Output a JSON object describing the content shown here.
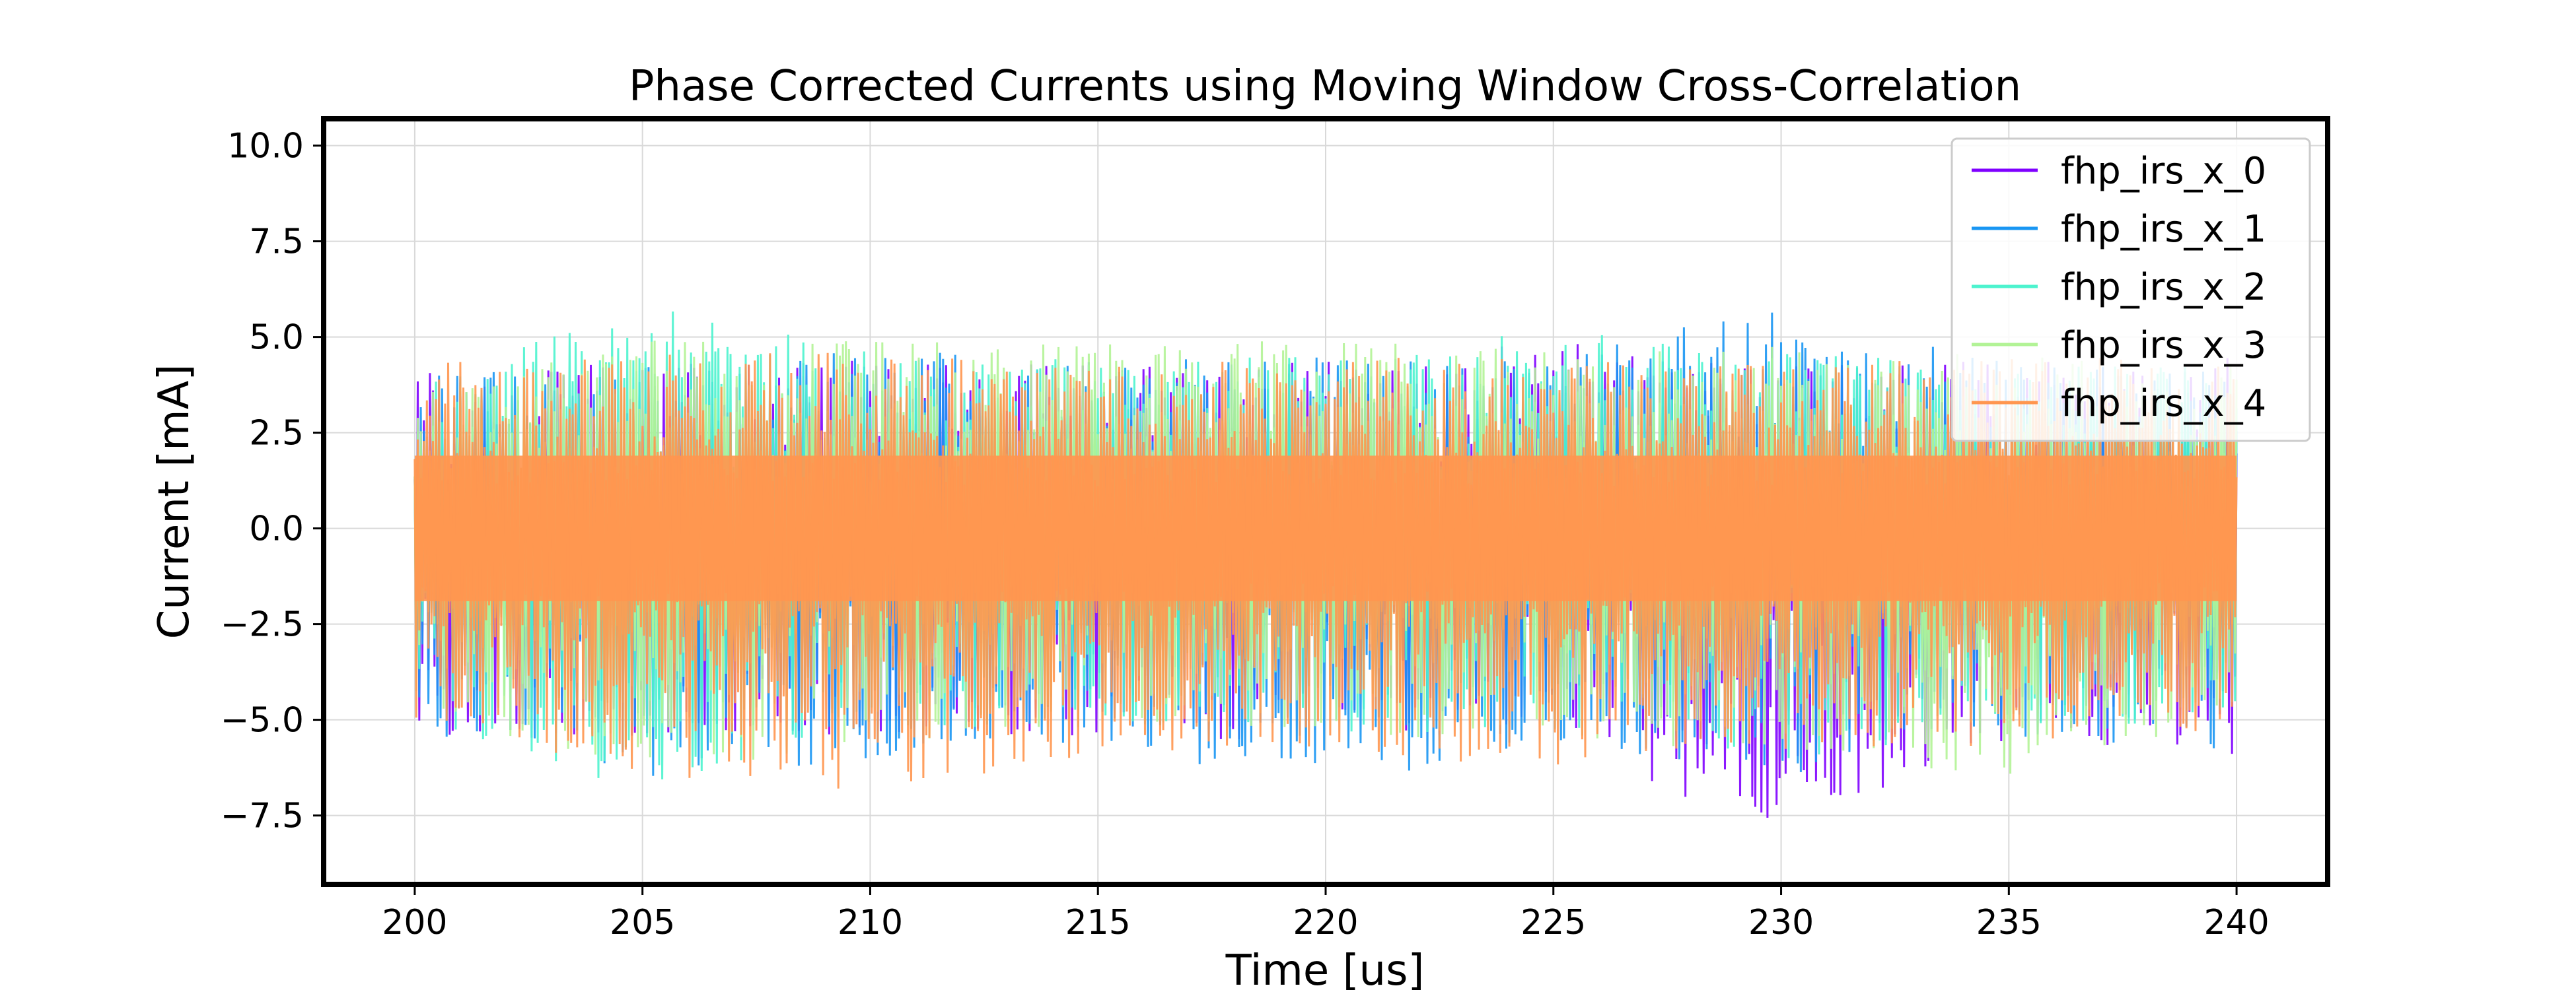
{
  "chart_data": {
    "type": "line",
    "title": "Phase Corrected Currents using Moving Window Cross-Correlation",
    "xlabel": "Time [us]",
    "ylabel": "Current [mA]",
    "xlim": [
      198,
      242
    ],
    "ylim": [
      -9.3,
      10.7
    ],
    "x_ticks": [
      200,
      205,
      210,
      215,
      220,
      225,
      230,
      235,
      240
    ],
    "x_tick_labels": [
      "200",
      "205",
      "210",
      "215",
      "220",
      "225",
      "230",
      "235",
      "240"
    ],
    "y_ticks": [
      -7.5,
      -5.0,
      -2.5,
      0.0,
      2.5,
      5.0,
      7.5,
      10.0
    ],
    "y_tick_labels": [
      "−7.5",
      "−5.0",
      "−2.5",
      "0.0",
      "2.5",
      "5.0",
      "7.5",
      "10.0"
    ],
    "grid": true,
    "legend_position": "top-right",
    "x_range": [
      200,
      240
    ],
    "series": [
      {
        "name": "fhp_irs_x_0",
        "color": "#7f00ff",
        "envelope_max": [
          4.2,
          4.3,
          4.4,
          4.3,
          4.4,
          4.9,
          4.3,
          4.4,
          4.5
        ],
        "envelope_min": [
          -5.4,
          -5.6,
          -5.5,
          -5.4,
          -5.6,
          -5.3,
          -8.4,
          -5.5,
          -6.2
        ]
      },
      {
        "name": "fhp_irs_x_1",
        "color": "#1996f3",
        "envelope_max": [
          4.0,
          4.3,
          4.7,
          4.4,
          4.5,
          4.4,
          6.1,
          4.3,
          4.3
        ],
        "envelope_min": [
          -5.3,
          -6.5,
          -6.2,
          -5.6,
          -6.9,
          -5.5,
          -6.6,
          -5.6,
          -5.8
        ]
      },
      {
        "name": "fhp_irs_x_2",
        "color": "#4df3ce",
        "envelope_max": [
          3.7,
          5.9,
          4.6,
          4.4,
          4.5,
          5.2,
          4.6,
          4.3,
          4.2
        ],
        "envelope_min": [
          -5.0,
          -6.9,
          -5.3,
          -5.1,
          -5.3,
          -5.4,
          -6.1,
          -5.3,
          -5.0
        ]
      },
      {
        "name": "fhp_irs_x_3",
        "color": "#b2f396",
        "envelope_max": [
          3.5,
          5.0,
          4.9,
          4.8,
          5.0,
          4.8,
          4.8,
          4.6,
          4.3
        ],
        "envelope_min": [
          -4.8,
          -6.5,
          -5.6,
          -5.2,
          -5.5,
          -5.5,
          -5.9,
          -6.5,
          -4.9
        ]
      },
      {
        "name": "fhp_irs_x_4",
        "color": "#ff964f",
        "envelope_max": [
          4.3,
          4.6,
          4.6,
          4.4,
          4.5,
          4.4,
          4.3,
          4.6,
          4.3
        ],
        "envelope_min": [
          -5.0,
          -6.4,
          -7.0,
          -5.9,
          -5.7,
          -6.4,
          -5.8,
          -5.7,
          -5.4
        ]
      }
    ]
  }
}
